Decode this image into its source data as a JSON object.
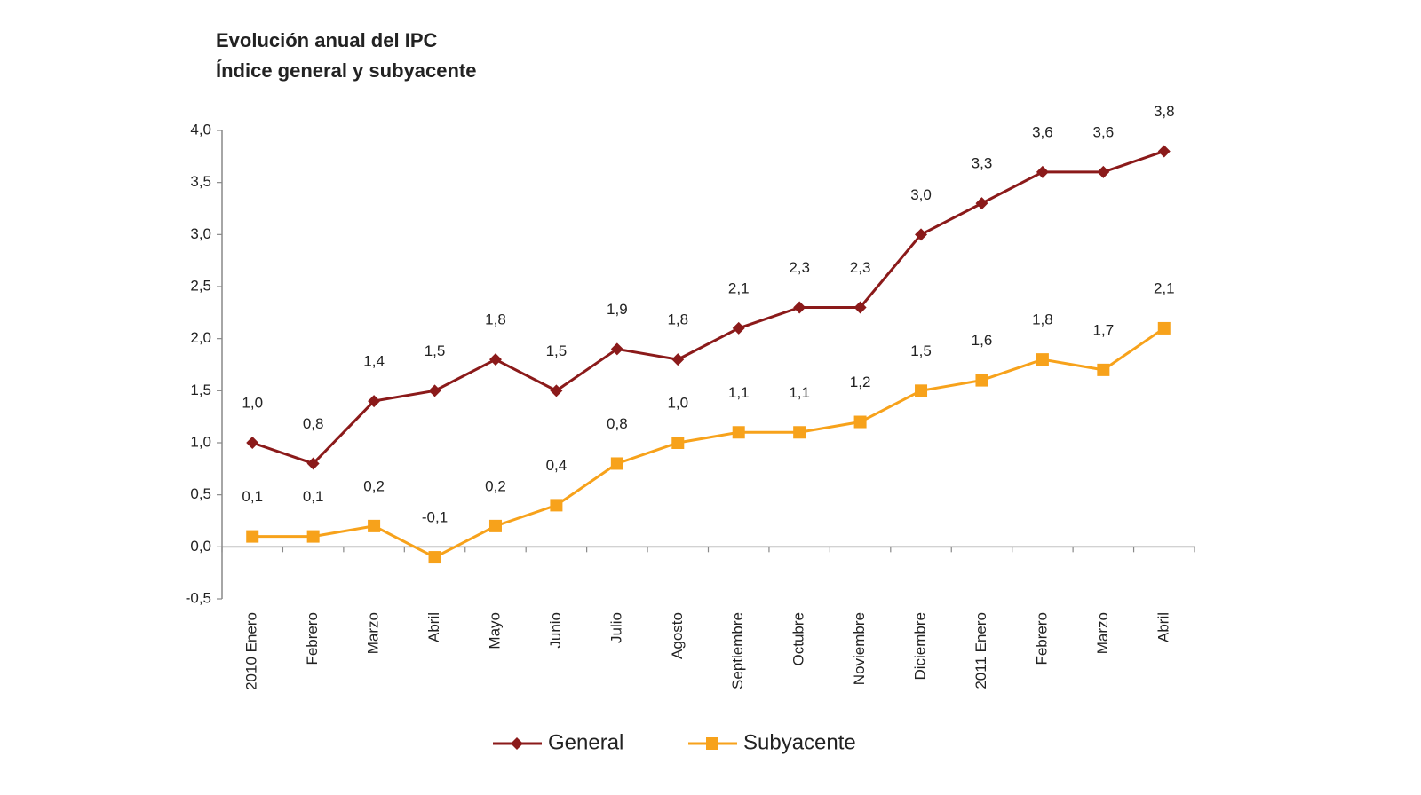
{
  "chart_data": {
    "type": "line",
    "title": "Evolución anual del IPC",
    "subtitle": "Índice general y subyacente",
    "categories": [
      "2010 Enero",
      "Febrero",
      "Marzo",
      "Abril",
      "Mayo",
      "Junio",
      "Julio",
      "Agosto",
      "Septiembre",
      "Octubre",
      "Noviembre",
      "Diciembre",
      "2011 Enero",
      "Febrero",
      "Marzo",
      "Abril"
    ],
    "series": [
      {
        "name": "General",
        "color": "#8b1a1a",
        "marker": "diamond",
        "values": [
          1.0,
          0.8,
          1.4,
          1.5,
          1.8,
          1.5,
          1.9,
          1.8,
          2.1,
          2.3,
          2.3,
          3.0,
          3.3,
          3.6,
          3.6,
          3.8
        ],
        "value_labels": [
          "1,0",
          "0,8",
          "1,4",
          "1,5",
          "1,8",
          "1,5",
          "1,9",
          "1,8",
          "2,1",
          "2,3",
          "2,3",
          "3,0",
          "3,3",
          "3,6",
          "3,6",
          "3,8"
        ]
      },
      {
        "name": "Subyacente",
        "color": "#f7a21b",
        "marker": "square",
        "values": [
          0.1,
          0.1,
          0.2,
          -0.1,
          0.2,
          0.4,
          0.8,
          1.0,
          1.1,
          1.1,
          1.2,
          1.5,
          1.6,
          1.8,
          1.7,
          2.1
        ],
        "value_labels": [
          "0,1",
          "0,1",
          "0,2",
          "-0,1",
          "0,2",
          "0,4",
          "0,8",
          "1,0",
          "1,1",
          "1,1",
          "1,2",
          "1,5",
          "1,6",
          "1,8",
          "1,7",
          "2,1"
        ]
      }
    ],
    "ylim": [
      -0.5,
      4.0
    ],
    "yticks": [
      {
        "value": -0.5,
        "label": "-0,5"
      },
      {
        "value": 0,
        "label": "0,0"
      },
      {
        "value": 0.5,
        "label": "0,5"
      },
      {
        "value": 1.0,
        "label": "1,0"
      },
      {
        "value": 1.5,
        "label": "1,5"
      },
      {
        "value": 2.0,
        "label": "2,0"
      },
      {
        "value": 2.5,
        "label": "2,5"
      },
      {
        "value": 3.0,
        "label": "3,0"
      },
      {
        "value": 3.5,
        "label": "3,5"
      },
      {
        "value": 4.0,
        "label": "4,0"
      }
    ],
    "grid": false,
    "legend": "bottom"
  }
}
